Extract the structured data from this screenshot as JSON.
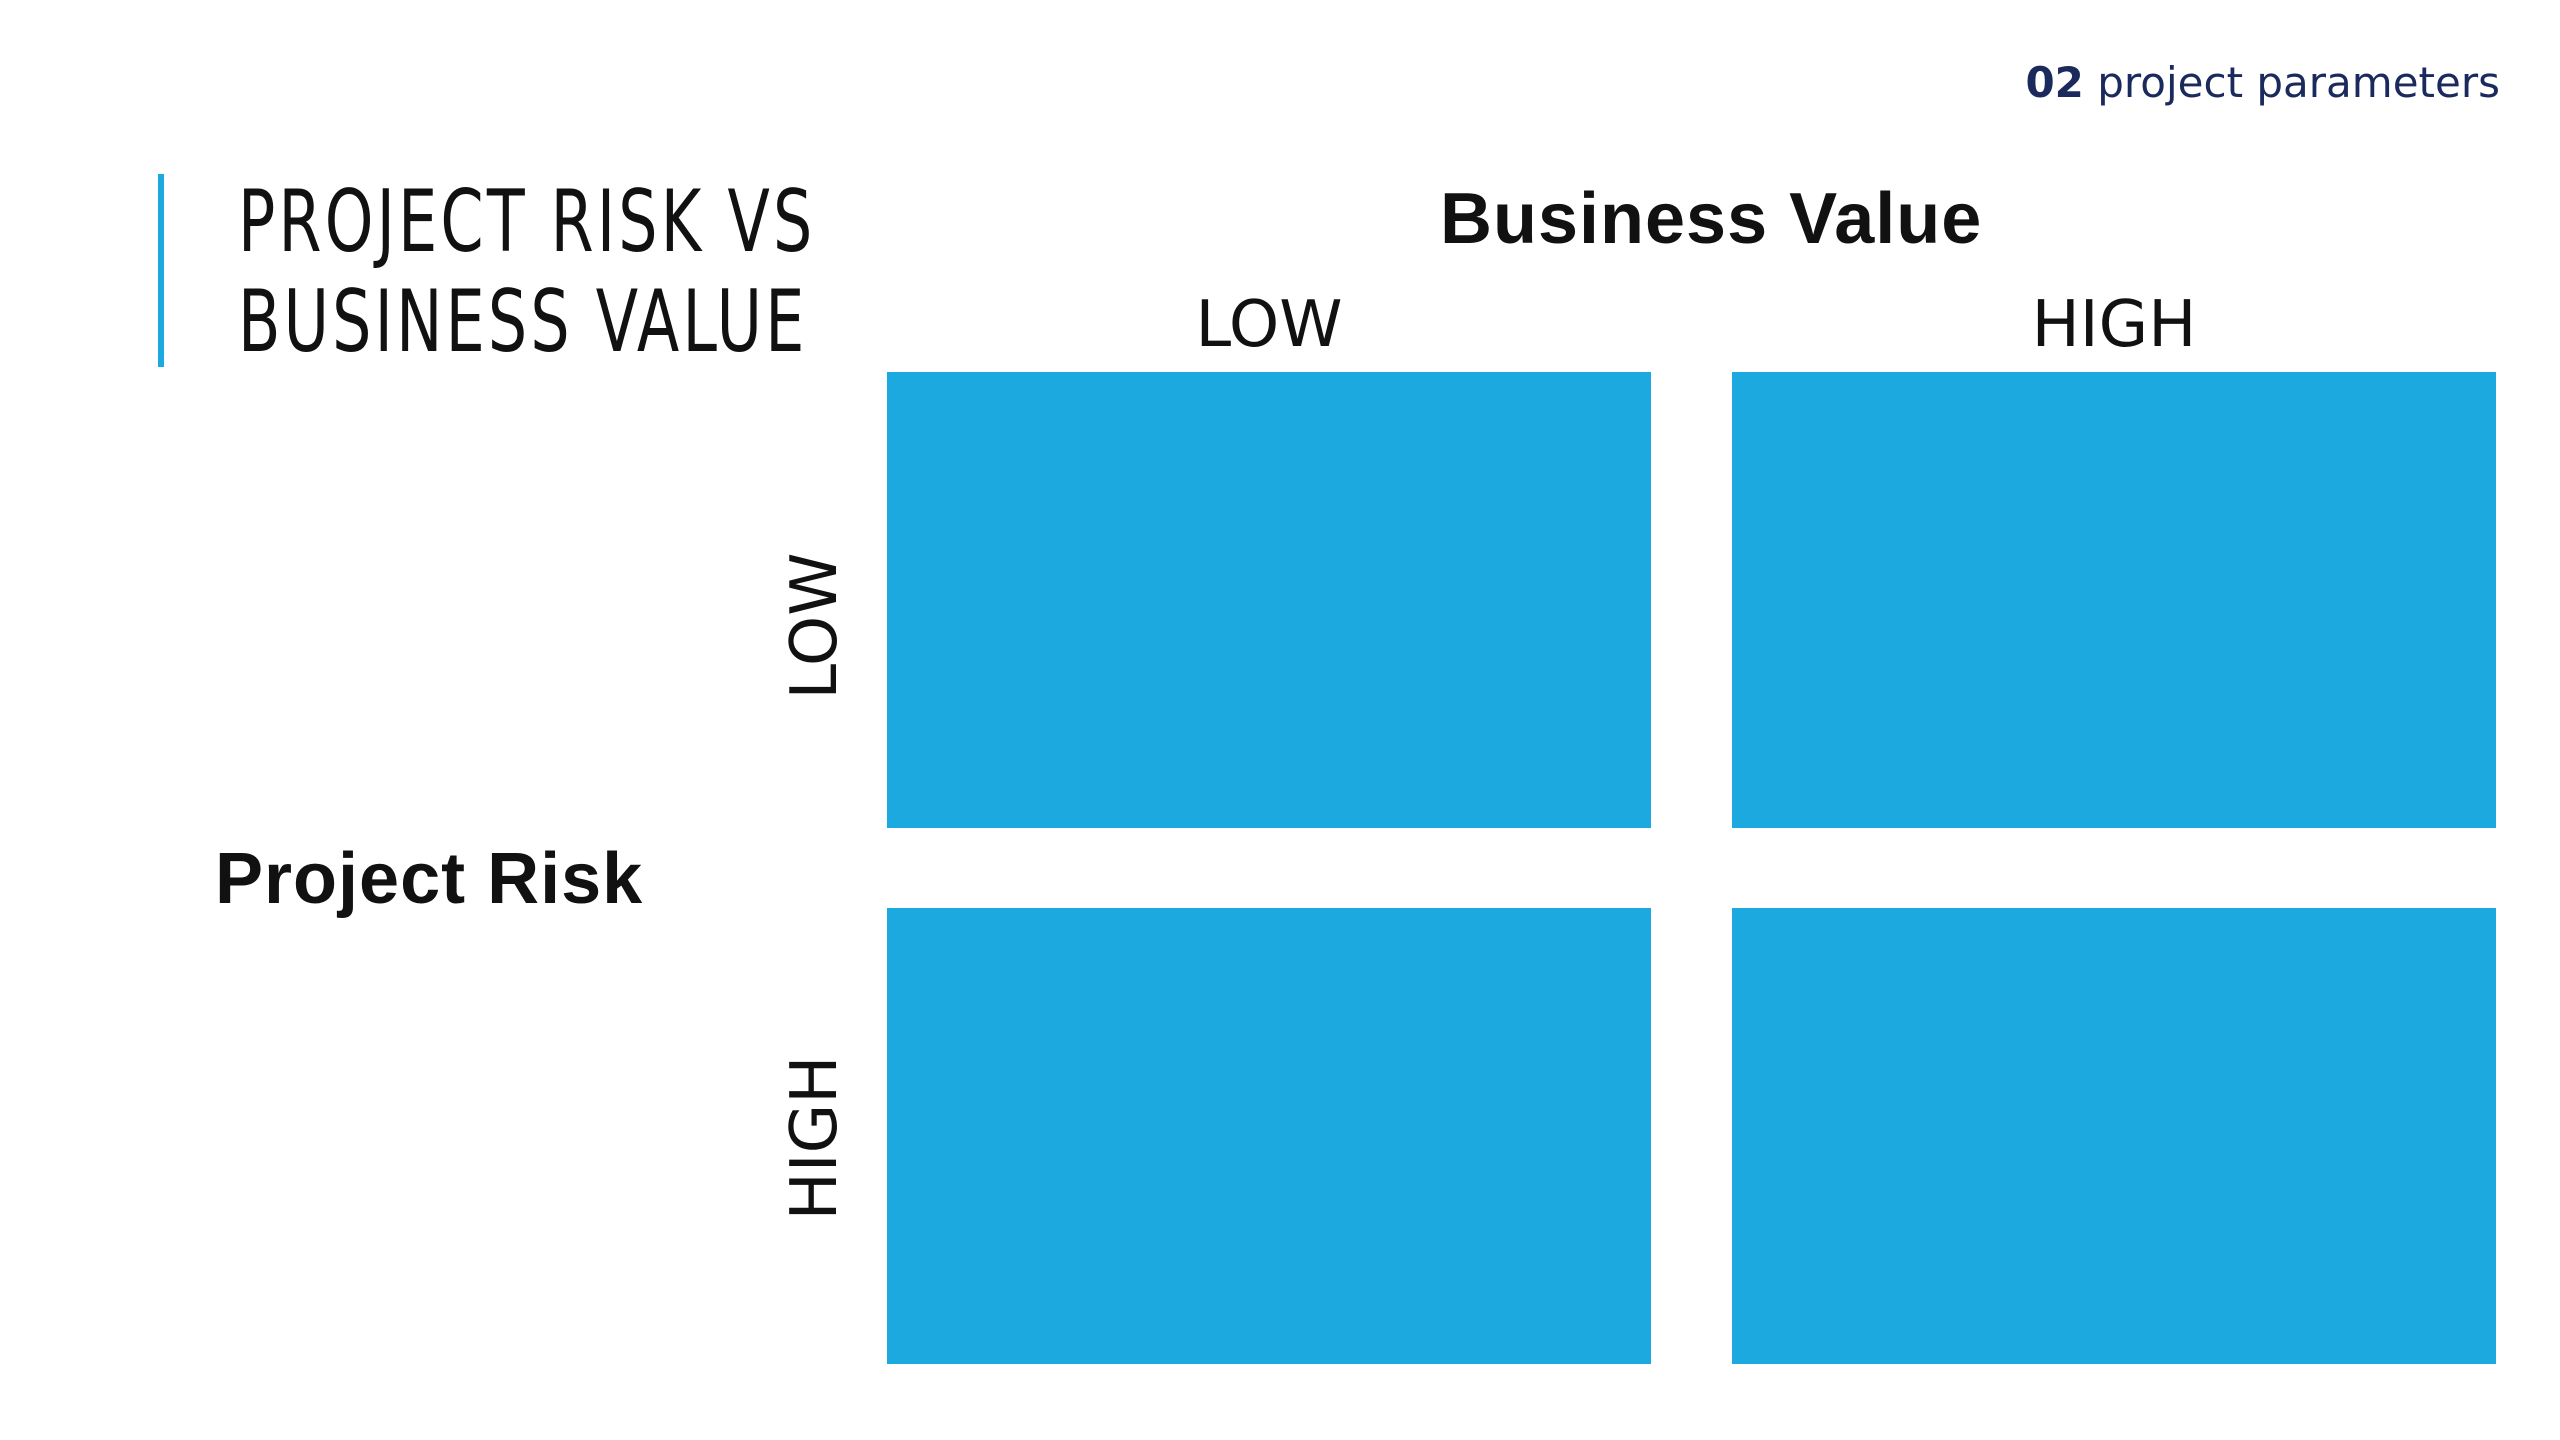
{
  "section_tag": {
    "number": "02",
    "text": "project parameters"
  },
  "title": {
    "line1": "PROJECT RISK VS",
    "line2": "BUSINESS VALUE"
  },
  "matrix": {
    "x_axis_title": "Business Value",
    "x_labels": [
      "LOW",
      "HIGH"
    ],
    "y_axis_title": "Project Risk",
    "y_labels": [
      "LOW",
      "HIGH"
    ],
    "cell_color": "#1ca9e0"
  },
  "colors": {
    "accent": "#1ca9e0",
    "tag_text": "#1b2a5c"
  }
}
